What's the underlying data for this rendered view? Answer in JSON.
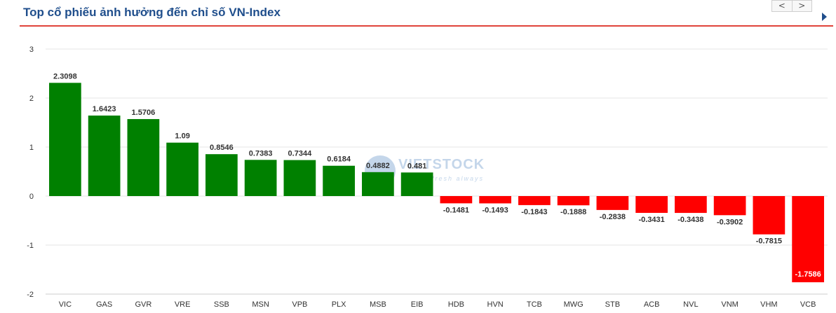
{
  "header": {
    "title": "Top cổ phiếu ảnh hưởng đến chỉ số VN-Index",
    "prev_label": "<",
    "next_label": ">"
  },
  "watermark": {
    "text": "VIETSTOCK",
    "subtext": "fresh always"
  },
  "colors": {
    "positive": "#008000",
    "negative": "#ff0000",
    "title": "#1f4e8c",
    "rule": "#e0443a",
    "grid": "#e6e6e6"
  },
  "chart_data": {
    "type": "bar",
    "title": "Top cổ phiếu ảnh hưởng đến chỉ số VN-Index",
    "xlabel": "",
    "ylabel": "",
    "ylim": [
      -2,
      3
    ],
    "yticks": [
      3,
      2,
      1,
      0,
      -1,
      -2
    ],
    "grid": true,
    "legend": "none",
    "categories": [
      "VIC",
      "GAS",
      "GVR",
      "VRE",
      "SSB",
      "MSN",
      "VPB",
      "PLX",
      "MSB",
      "EIB",
      "HDB",
      "HVN",
      "TCB",
      "MWG",
      "STB",
      "ACB",
      "NVL",
      "VNM",
      "VHM",
      "VCB"
    ],
    "values": [
      2.3098,
      1.6423,
      1.5706,
      1.09,
      0.8546,
      0.7383,
      0.7344,
      0.6184,
      0.4882,
      0.481,
      -0.1481,
      -0.1493,
      -0.1843,
      -0.1888,
      -0.2838,
      -0.3431,
      -0.3438,
      -0.3902,
      -0.7815,
      -1.7586
    ],
    "labels": [
      "2.3098",
      "1.6423",
      "1.5706",
      "1.09",
      "0.8546",
      "0.7383",
      "0.7344",
      "0.6184",
      "0.4882",
      "0.481",
      "-0.1481",
      "-0.1493",
      "-0.1843",
      "-0.1888",
      "-0.2838",
      "-0.3431",
      "-0.3438",
      "-0.3902",
      "-0.7815",
      "-1.7586"
    ]
  }
}
